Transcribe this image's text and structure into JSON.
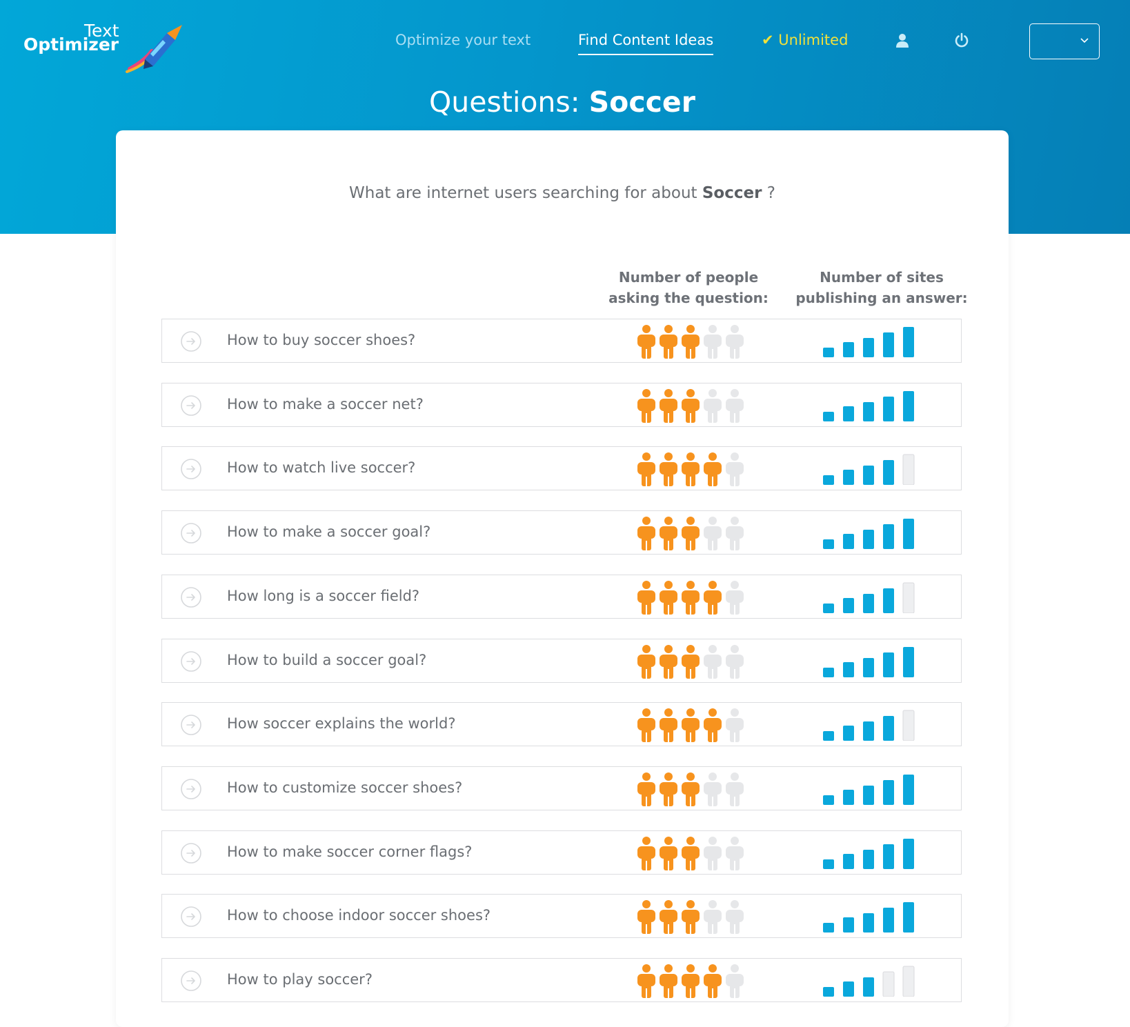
{
  "app": {
    "logo_line1": "Text",
    "logo_line2": "Optimizer"
  },
  "nav": {
    "optimize": "Optimize your text",
    "find": "Find Content Ideas",
    "unlimited": "✔ Unlimited",
    "icons": [
      "user-icon",
      "power-icon"
    ],
    "language_select_value": ""
  },
  "page": {
    "title_prefix": "Questions: ",
    "title_keyword": "Soccer"
  },
  "card": {
    "subtitle_prefix": "What are internet users searching for about ",
    "subtitle_keyword": "Soccer",
    "subtitle_suffix": " ?",
    "col_people_line1": "Number of people",
    "col_people_line2": "asking the question:",
    "col_sites_line1": "Number of sites",
    "col_sites_line2": "publishing an answer:"
  },
  "questions": [
    {
      "text": "How to buy soccer shoes?",
      "people": 3,
      "sites": 5
    },
    {
      "text": "How to make a soccer net?",
      "people": 3,
      "sites": 5
    },
    {
      "text": "How to watch live soccer?",
      "people": 4,
      "sites": 4
    },
    {
      "text": "How to make a soccer goal?",
      "people": 3,
      "sites": 5
    },
    {
      "text": "How long is a soccer field?",
      "people": 4,
      "sites": 4
    },
    {
      "text": "How to build a soccer goal?",
      "people": 3,
      "sites": 5
    },
    {
      "text": "How soccer explains the world?",
      "people": 4,
      "sites": 4
    },
    {
      "text": "How to customize soccer shoes?",
      "people": 3,
      "sites": 5
    },
    {
      "text": "How to make soccer corner flags?",
      "people": 3,
      "sites": 5
    },
    {
      "text": "How to choose indoor soccer shoes?",
      "people": 3,
      "sites": 5
    },
    {
      "text": "How to play soccer?",
      "people": 4,
      "sites": 3
    }
  ],
  "scale_max": {
    "people": 5,
    "sites": 5
  },
  "colors": {
    "header_start": "#02a7d8",
    "header_end": "#057fb6",
    "person_active": "#f7931e",
    "person_inactive": "#e6e7e9",
    "bar_active": "#0aa8dc",
    "bar_inactive": "#eeeff1",
    "unlimited": "#f2e13a"
  }
}
